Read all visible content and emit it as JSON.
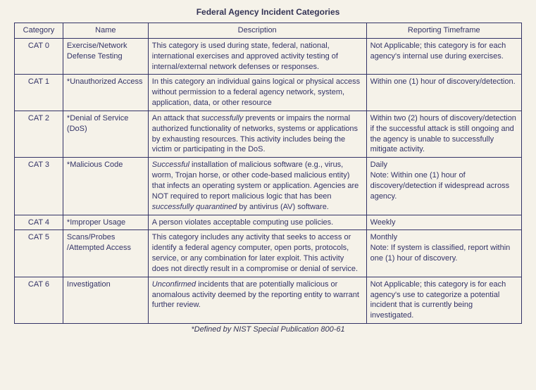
{
  "title": "Federal Agency Incident Categories",
  "columns": [
    "Category",
    "Name",
    "Description",
    "Reporting Timeframe"
  ],
  "rows": [
    {
      "category": "CAT 0",
      "name": "Exercise/Network Defense Testing",
      "desc_html": "This category is used during state, federal, national, international exercises and approved activity testing of internal/external network defenses or responses.",
      "timeframe": "Not Applicable; this category is for each agency's internal use during exercises."
    },
    {
      "category": "CAT 1",
      "name": "*Unauthorized Access",
      "desc_html": "In this category an individual gains logical or physical access without permission to a federal agency network, system, application, data, or other resource",
      "timeframe": "Within one (1) hour of discovery/detection."
    },
    {
      "category": "CAT 2",
      "name": "*Denial of Service (DoS)",
      "desc_html": "An attack that <span class=\"italic\">successfully</span> prevents or impairs the normal authorized functionality of networks, systems or applications by exhausting resources. This activity includes being the victim or participating in the DoS.",
      "timeframe": "Within two (2) hours of discovery/detection if the successful attack is still ongoing and the agency is unable to successfully mitigate activity."
    },
    {
      "category": "CAT 3",
      "name": "*Malicious Code",
      "desc_html": "<span class=\"italic\">Successful</span> installation of malicious software (e.g., virus, worm, Trojan horse, or other code-based malicious entity) that infects an operating system or application. Agencies are NOT required to report malicious logic that has been <span class=\"italic\">successfully quarantined</span> by antivirus (AV) software.",
      "timeframe": "Daily\nNote: Within one (1) hour of discovery/detection if widespread across agency."
    },
    {
      "category": "CAT 4",
      "name": "*Improper Usage",
      "desc_html": "A person violates acceptable computing use policies.",
      "timeframe": "Weekly"
    },
    {
      "category": "CAT 5",
      "name": "Scans/Probes /Attempted Access",
      "desc_html": "This category includes any activity that seeks to access or identify a federal agency computer, open ports, protocols, service, or any combination for later exploit. This activity does not directly result in a compromise or denial of service.",
      "timeframe": "Monthly\nNote: If system is classified, report within one (1) hour of discovery."
    },
    {
      "category": "CAT 6",
      "name": "Investigation",
      "desc_html": "<span class=\"italic\">Unconfirmed</span> incidents that are potentially malicious or anomalous activity deemed by the reporting entity to warrant further review.",
      "timeframe": "Not Applicable; this category is for each agency's use to categorize a potential incident that is currently being investigated."
    }
  ],
  "footnote": "*Defined by NIST Special Publication 800-61",
  "colors": {
    "background": "#f5f2e9",
    "border": "#333366",
    "text": "#333366"
  }
}
